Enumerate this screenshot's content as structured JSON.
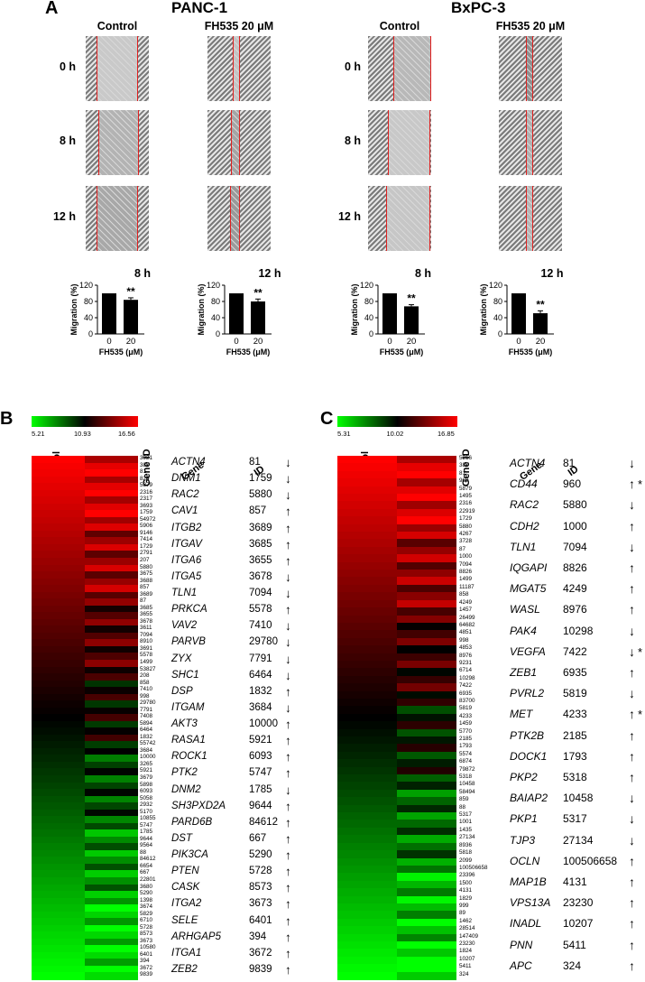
{
  "panelA": {
    "letter": "A",
    "cells": [
      {
        "name": "PANC-1",
        "cond": [
          "Control",
          "FH535 20 μM"
        ]
      },
      {
        "name": "BxPC-3",
        "cond": [
          "Control",
          "FH535 20 μM"
        ]
      }
    ],
    "times": [
      "0 h",
      "8 h",
      "12 h"
    ],
    "bars": [
      {
        "title": "8 h",
        "values": [
          100,
          84
        ],
        "err": [
          0,
          5
        ]
      },
      {
        "title": "12 h",
        "values": [
          100,
          80
        ],
        "err": [
          0,
          6
        ]
      },
      {
        "title": "8 h",
        "values": [
          100,
          68
        ],
        "err": [
          0,
          4
        ]
      },
      {
        "title": "12 h",
        "values": [
          100,
          51
        ],
        "err": [
          0,
          6
        ]
      }
    ],
    "ylabel": "Migration (%)",
    "xlabel": "FH535 (μM)",
    "xticks": [
      "0",
      "20"
    ],
    "yticks": [
      "0",
      "40",
      "80",
      "120"
    ],
    "sig": "**"
  },
  "panelB": {
    "letter": "B",
    "scale": [
      "5.21",
      "10.93",
      "16.56"
    ],
    "cols": [
      "Control",
      "FH535",
      "Gene ID"
    ],
    "hdr": [
      "Gene",
      "ID"
    ],
    "ids": [
      "3921",
      "387",
      "81",
      "824",
      "5879",
      "2316",
      "2317",
      "3693",
      "1759",
      "54972",
      "5906",
      "9146",
      "7414",
      "1729",
      "2791",
      "207",
      "5880",
      "3675",
      "3688",
      "857",
      "3689",
      "87",
      "3685",
      "3655",
      "3678",
      "3611",
      "7094",
      "8910",
      "3691",
      "5578",
      "1499",
      "53827",
      "208",
      "858",
      "7410",
      "998",
      "29780",
      "7791",
      "7408",
      "5894",
      "6464",
      "1832",
      "55742",
      "3684",
      "10000",
      "3265",
      "5921",
      "3679",
      "5898",
      "6093",
      "5058",
      "2932",
      "5170",
      "10855",
      "5747",
      "1785",
      "9644",
      "9564",
      "88",
      "84612",
      "6654",
      "667",
      "22801",
      "3680",
      "5290",
      "1398",
      "3674",
      "5829",
      "6710",
      "5728",
      "8573",
      "3673",
      "10580",
      "6401",
      "394",
      "3672",
      "9839"
    ],
    "genes": [
      [
        "ACTN4",
        "81",
        "↓"
      ],
      [
        "DNM1",
        "1759",
        "↓"
      ],
      [
        "RAC2",
        "5880",
        "↓"
      ],
      [
        "CAV1",
        "857",
        "↑"
      ],
      [
        "ITGB2",
        "3689",
        "↑"
      ],
      [
        "ITGAV",
        "3685",
        "↑"
      ],
      [
        "ITGA6",
        "3655",
        "↑"
      ],
      [
        "ITGA5",
        "3678",
        "↓"
      ],
      [
        "TLN1",
        "7094",
        "↓"
      ],
      [
        "PRKCA",
        "5578",
        "↑"
      ],
      [
        "VAV2",
        "7410",
        "↓"
      ],
      [
        "PARVB",
        "29780",
        "↓"
      ],
      [
        "ZYX",
        "7791",
        "↓"
      ],
      [
        "SHC1",
        "6464",
        "↓"
      ],
      [
        "DSP",
        "1832",
        "↑"
      ],
      [
        "ITGAM",
        "3684",
        "↓"
      ],
      [
        "AKT3",
        "10000",
        "↑"
      ],
      [
        "RASA1",
        "5921",
        "↑"
      ],
      [
        "ROCK1",
        "6093",
        "↑"
      ],
      [
        "PTK2",
        "5747",
        "↑"
      ],
      [
        "DNM2",
        "1785",
        "↓"
      ],
      [
        "SH3PXD2A",
        "9644",
        "↑"
      ],
      [
        "PARD6B",
        "84612",
        "↑"
      ],
      [
        "DST",
        "667",
        "↑"
      ],
      [
        "PIK3CA",
        "5290",
        "↑"
      ],
      [
        "PTEN",
        "5728",
        "↑"
      ],
      [
        "CASK",
        "8573",
        "↑"
      ],
      [
        "ITGA2",
        "3673",
        "↑"
      ],
      [
        "SELE",
        "6401",
        "↑"
      ],
      [
        "ARHGAP5",
        "394",
        "↑"
      ],
      [
        "ITGA1",
        "3672",
        "↑"
      ],
      [
        "ZEB2",
        "9839",
        "↑"
      ]
    ]
  },
  "panelC": {
    "letter": "C",
    "scale": [
      "5.31",
      "10.02",
      "16.85"
    ],
    "cols": [
      "Control",
      "FH535",
      "Gene ID"
    ],
    "hdr": [
      "Gene",
      "ID"
    ],
    "ids": [
      "5216",
      "387",
      "81",
      "960",
      "5879",
      "1495",
      "2316",
      "22919",
      "1729",
      "5880",
      "4267",
      "3728",
      "87",
      "1000",
      "7094",
      "8826",
      "1499",
      "11187",
      "858",
      "4249",
      "1457",
      "26499",
      "64682",
      "4851",
      "998",
      "4853",
      "8976",
      "9231",
      "6714",
      "10298",
      "7422",
      "6935",
      "83700",
      "5819",
      "4233",
      "1459",
      "5770",
      "2185",
      "1793",
      "5574",
      "6874",
      "79872",
      "5318",
      "10458",
      "58494",
      "859",
      "88",
      "5317",
      "1001",
      "1435",
      "27134",
      "8936",
      "5818",
      "2099",
      "100506658",
      "23396",
      "1500",
      "4131",
      "1829",
      "999",
      "89",
      "1462",
      "28514",
      "147409",
      "23230",
      "1824",
      "10207",
      "5411",
      "324"
    ],
    "genes": [
      [
        "ACTN4",
        "81",
        "↓",
        ""
      ],
      [
        "CD44",
        "960",
        "↑",
        "*"
      ],
      [
        "RAC2",
        "5880",
        "↓",
        ""
      ],
      [
        "CDH2",
        "1000",
        "↑",
        ""
      ],
      [
        "TLN1",
        "7094",
        "↓",
        ""
      ],
      [
        "IQGAPI",
        "8826",
        "↑",
        ""
      ],
      [
        "MGAT5",
        "4249",
        "↑",
        ""
      ],
      [
        "WASL",
        "8976",
        "↑",
        ""
      ],
      [
        "PAK4",
        "10298",
        "↓",
        ""
      ],
      [
        "VEGFA",
        "7422",
        "↓",
        "*"
      ],
      [
        "ZEB1",
        "6935",
        "↑",
        ""
      ],
      [
        "PVRL2",
        "5819",
        "↓",
        ""
      ],
      [
        "MET",
        "4233",
        "↑",
        "*"
      ],
      [
        "PTK2B",
        "2185",
        "↑",
        ""
      ],
      [
        "DOCK1",
        "1793",
        "↑",
        ""
      ],
      [
        "PKP2",
        "5318",
        "↑",
        ""
      ],
      [
        "BAIAP2",
        "10458",
        "↓",
        ""
      ],
      [
        "PKP1",
        "5317",
        "↓",
        ""
      ],
      [
        "TJP3",
        "27134",
        "↓",
        ""
      ],
      [
        "OCLN",
        "100506658",
        "↑",
        ""
      ],
      [
        "MAP1B",
        "4131",
        "↑",
        ""
      ],
      [
        "VPS13A",
        "23230",
        "↑",
        ""
      ],
      [
        "INADL",
        "10207",
        "↑",
        ""
      ],
      [
        "PNN",
        "5411",
        "↑",
        ""
      ],
      [
        "APC",
        "324",
        "↑",
        ""
      ]
    ]
  }
}
